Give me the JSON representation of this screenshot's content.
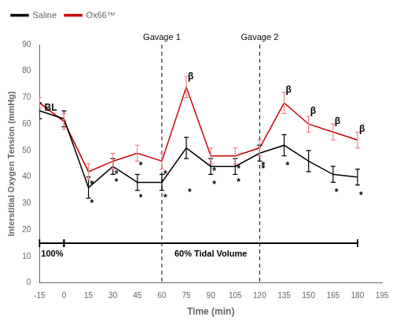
{
  "chart_data": {
    "type": "line",
    "xlabel": "Time (min)",
    "ylabel": "Interstitial Oxygen Tension (mmHg)",
    "x": [
      -15,
      0,
      15,
      30,
      45,
      60,
      75,
      90,
      105,
      120,
      135,
      150,
      165,
      180
    ],
    "series": [
      {
        "name": "Saline",
        "color": "#000000",
        "values": [
          65,
          62,
          36,
          44,
          38,
          38,
          51,
          44,
          44,
          49,
          52,
          46,
          41,
          40
        ],
        "errors": [
          3,
          3,
          4,
          3,
          3,
          3,
          4,
          3,
          3,
          3,
          4,
          4,
          3,
          3
        ]
      },
      {
        "name": "Ox66™",
        "color": "#cc0000",
        "error_color": "#ee8888",
        "values": [
          68,
          61,
          42,
          46,
          49,
          46,
          74,
          48,
          48,
          51,
          68,
          60,
          57,
          54
        ],
        "errors": [
          2,
          3,
          3,
          3,
          3,
          3,
          4,
          3,
          3,
          3,
          4,
          3,
          3,
          3
        ]
      }
    ],
    "xlim": [
      -15,
      195
    ],
    "ylim": [
      0,
      90
    ],
    "xticks": [
      -15,
      0,
      15,
      30,
      45,
      60,
      75,
      90,
      105,
      120,
      135,
      150,
      165,
      180,
      195
    ],
    "yticks": [
      0,
      10,
      20,
      30,
      40,
      50,
      60,
      70,
      80,
      90
    ],
    "grid": false,
    "legend": "upper left",
    "vlines": [
      {
        "x": 60,
        "label": "Gavage 1"
      },
      {
        "x": 120,
        "label": "Gavage 2"
      }
    ],
    "annotations": [
      {
        "text": "BL",
        "x": -13,
        "y": 66
      },
      {
        "text": "*",
        "x": 15,
        "y": 30
      },
      {
        "text": "*",
        "x": 30,
        "y": 38
      },
      {
        "text": "*",
        "x": 45,
        "y": 32
      },
      {
        "text": "*",
        "x": 60,
        "y": 32
      },
      {
        "text": "*",
        "x": 75,
        "y": 34
      },
      {
        "text": "*",
        "x": 90,
        "y": 37
      },
      {
        "text": "*",
        "x": 105,
        "y": 38
      },
      {
        "text": "*",
        "x": 120,
        "y": 43
      },
      {
        "text": "*",
        "x": 135,
        "y": 44
      },
      {
        "text": "*",
        "x": 165,
        "y": 34
      },
      {
        "text": "*",
        "x": 180,
        "y": 33
      },
      {
        "text": "*",
        "x": 15,
        "y": 37
      },
      {
        "text": "*",
        "x": 30,
        "y": 41
      },
      {
        "text": "*",
        "x": 45,
        "y": 44
      },
      {
        "text": "*",
        "x": 60,
        "y": 41
      },
      {
        "text": "*",
        "x": 90,
        "y": 42
      },
      {
        "text": "*",
        "x": 105,
        "y": 43
      },
      {
        "text": "*",
        "x": 120,
        "y": 44
      },
      {
        "text": "β",
        "x": 75,
        "y": 78
      },
      {
        "text": "β",
        "x": 135,
        "y": 73
      },
      {
        "text": "β",
        "x": 150,
        "y": 65
      },
      {
        "text": "β",
        "x": 165,
        "y": 61
      },
      {
        "text": "β",
        "x": 180,
        "y": 58
      }
    ],
    "brackets": [
      {
        "label": "100%",
        "from": -15,
        "to": 0,
        "y": 15.0
      },
      {
        "label": "60% Tidal Volume",
        "from": 0,
        "to": 180,
        "y": 15.0
      }
    ]
  }
}
